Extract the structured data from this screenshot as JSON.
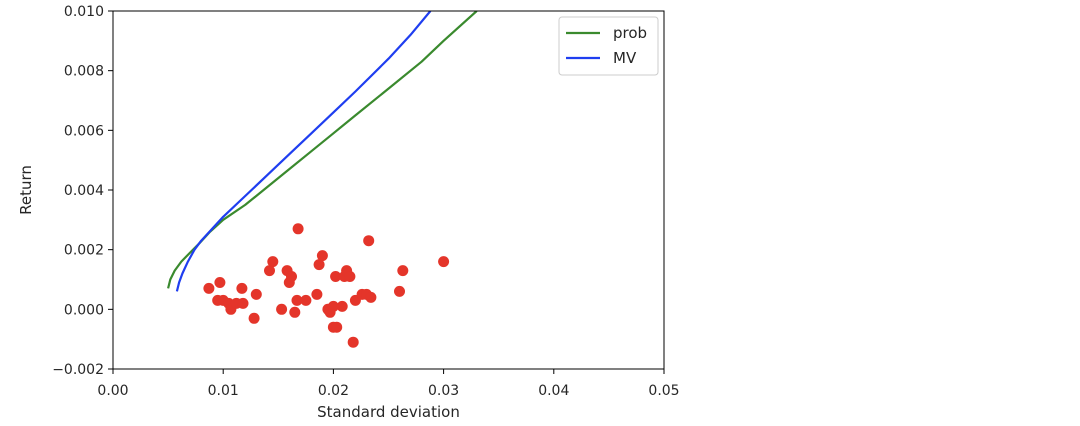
{
  "chart_data": {
    "type": "scatter",
    "title": "",
    "xlabel": "Standard deviation",
    "ylabel": "Return",
    "xlim": [
      0.0,
      0.05
    ],
    "ylim": [
      -0.002,
      0.01
    ],
    "xticks": [
      "0.00",
      "0.01",
      "0.02",
      "0.03",
      "0.04",
      "0.05"
    ],
    "yticks": [
      "−0.002",
      "0.000",
      "0.002",
      "0.004",
      "0.006",
      "0.008",
      "0.010"
    ],
    "grid": false,
    "legend": {
      "placement": "top-right",
      "entries": [
        "prob",
        "MV"
      ]
    },
    "colors": {
      "prob": "#3a8a2e",
      "MV": "#1f3ef0",
      "points": "#e4352a",
      "axes": "#000000"
    },
    "series": [
      {
        "name": "prob",
        "type": "line",
        "points": [
          [
            0.005,
            0.0007
          ],
          [
            0.0052,
            0.001
          ],
          [
            0.0056,
            0.0013
          ],
          [
            0.0062,
            0.0016
          ],
          [
            0.007,
            0.0019
          ],
          [
            0.0078,
            0.0022
          ],
          [
            0.0088,
            0.0026
          ],
          [
            0.01,
            0.003
          ],
          [
            0.012,
            0.0035
          ],
          [
            0.014,
            0.0041
          ],
          [
            0.016,
            0.0047
          ],
          [
            0.018,
            0.0053
          ],
          [
            0.02,
            0.0059
          ],
          [
            0.022,
            0.0065
          ],
          [
            0.025,
            0.0074
          ],
          [
            0.028,
            0.0083
          ],
          [
            0.03,
            0.009
          ],
          [
            0.033,
            0.01
          ]
        ]
      },
      {
        "name": "MV",
        "type": "line",
        "points": [
          [
            0.0058,
            0.0006
          ],
          [
            0.006,
            0.0009
          ],
          [
            0.0063,
            0.0012
          ],
          [
            0.0068,
            0.0016
          ],
          [
            0.0074,
            0.002
          ],
          [
            0.008,
            0.0023
          ],
          [
            0.009,
            0.0027
          ],
          [
            0.01,
            0.0031
          ],
          [
            0.012,
            0.0038
          ],
          [
            0.014,
            0.0045
          ],
          [
            0.016,
            0.0052
          ],
          [
            0.018,
            0.0059
          ],
          [
            0.02,
            0.0066
          ],
          [
            0.022,
            0.0073
          ],
          [
            0.025,
            0.0084
          ],
          [
            0.027,
            0.0092
          ],
          [
            0.0288,
            0.01
          ]
        ]
      },
      {
        "name": "",
        "type": "scatter",
        "points": [
          [
            0.0087,
            0.0007
          ],
          [
            0.0095,
            0.0003
          ],
          [
            0.0097,
            0.0009
          ],
          [
            0.01,
            0.0003
          ],
          [
            0.0105,
            0.0002
          ],
          [
            0.0107,
            0.0
          ],
          [
            0.0112,
            0.0002
          ],
          [
            0.0117,
            0.0007
          ],
          [
            0.0118,
            0.0002
          ],
          [
            0.0128,
            -0.0003
          ],
          [
            0.013,
            0.0005
          ],
          [
            0.0142,
            0.0013
          ],
          [
            0.0145,
            0.0016
          ],
          [
            0.0153,
            0.0
          ],
          [
            0.0158,
            0.0013
          ],
          [
            0.016,
            0.0009
          ],
          [
            0.0162,
            0.0011
          ],
          [
            0.0165,
            -0.0001
          ],
          [
            0.0167,
            0.0003
          ],
          [
            0.0168,
            0.0027
          ],
          [
            0.0175,
            0.0003
          ],
          [
            0.0185,
            0.0005
          ],
          [
            0.0187,
            0.0015
          ],
          [
            0.019,
            0.0018
          ],
          [
            0.0195,
            0.0
          ],
          [
            0.0197,
            -0.0001
          ],
          [
            0.02,
            0.0001
          ],
          [
            0.02,
            -0.0006
          ],
          [
            0.0202,
            0.0011
          ],
          [
            0.0203,
            -0.0006
          ],
          [
            0.0208,
            0.0001
          ],
          [
            0.021,
            0.0011
          ],
          [
            0.0212,
            0.0013
          ],
          [
            0.0215,
            0.0011
          ],
          [
            0.0218,
            -0.0011
          ],
          [
            0.022,
            0.0003
          ],
          [
            0.0226,
            0.0005
          ],
          [
            0.023,
            0.0005
          ],
          [
            0.0232,
            0.0023
          ],
          [
            0.0234,
            0.0004
          ],
          [
            0.026,
            0.0006
          ],
          [
            0.0263,
            0.0013
          ],
          [
            0.03,
            0.0016
          ]
        ]
      }
    ]
  }
}
